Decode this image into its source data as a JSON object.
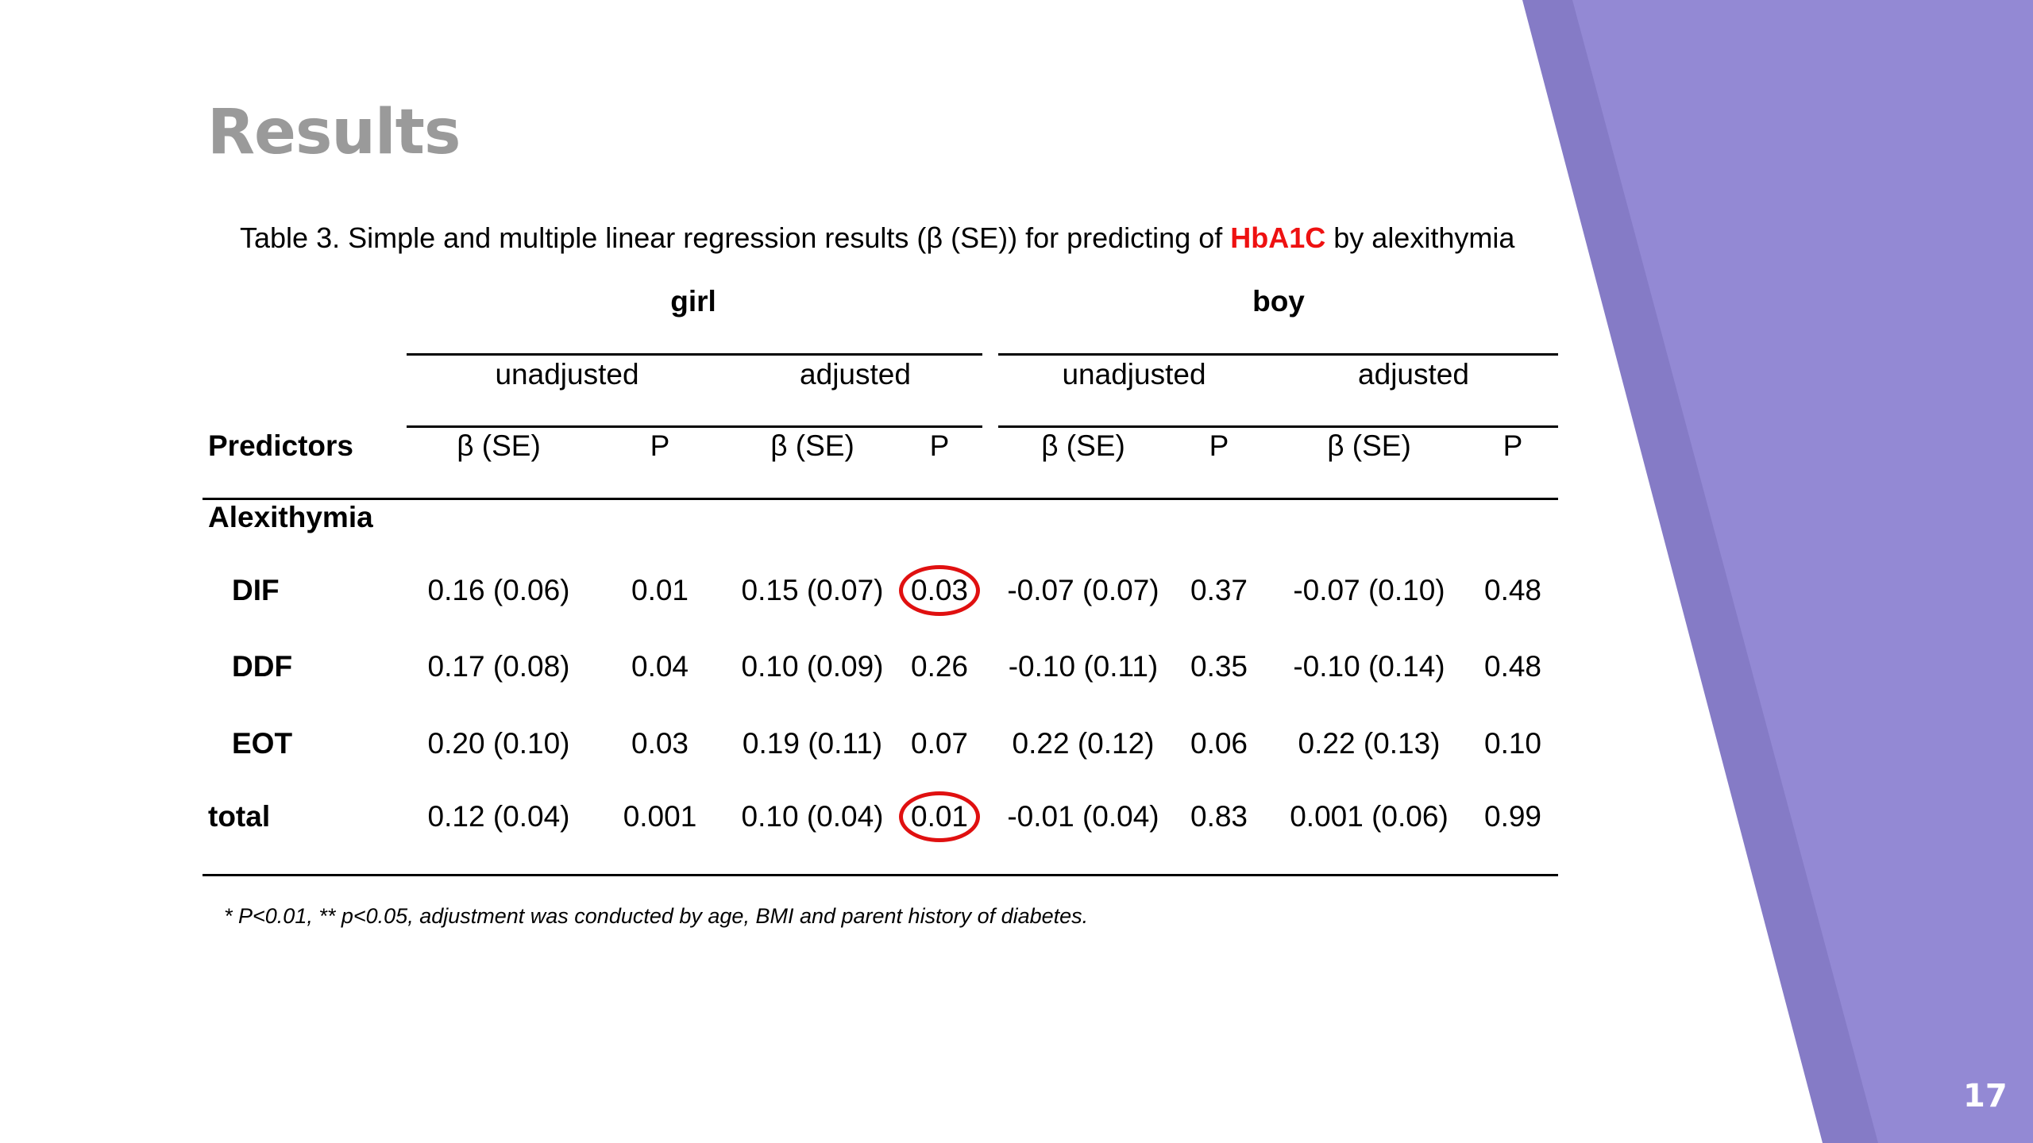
{
  "slide": {
    "title": "Results",
    "page_number": "17",
    "accent_color": "#9389d4",
    "accent_dark": "#857bc6"
  },
  "table": {
    "caption_pre": "Table 3. Simple and multiple linear regression results (β (SE)) for predicting of ",
    "caption_highlight": "HbA1C",
    "caption_post": " by alexithymia",
    "groups": [
      "girl",
      "boy"
    ],
    "subgroups": [
      "unadjusted",
      "adjusted",
      "unadjusted",
      "adjusted"
    ],
    "predictors_label": "Predictors",
    "column_headers": [
      "β (SE)",
      "P",
      "β (SE)",
      "P",
      "β (SE)",
      "P",
      "β (SE)",
      "P"
    ],
    "section_label": "Alexithymia",
    "rows": [
      {
        "label": "DIF",
        "cells": [
          "0.16 (0.06)",
          "0.01",
          "0.15 (0.07)",
          "0.03",
          "-0.07 (0.07)",
          "0.37",
          "-0.07 (0.10)",
          "0.48"
        ]
      },
      {
        "label": "DDF",
        "cells": [
          "0.17 (0.08)",
          "0.04",
          "0.10 (0.09)",
          "0.26",
          "-0.10 (0.11)",
          "0.35",
          "-0.10 (0.14)",
          "0.48"
        ]
      },
      {
        "label": "EOT",
        "cells": [
          "0.20 (0.10)",
          "0.03",
          "0.19 (0.11)",
          "0.07",
          "0.22 (0.12)",
          "0.06",
          "0.22 (0.13)",
          "0.10"
        ]
      },
      {
        "label": "total",
        "cells": [
          "0.12 (0.04)",
          "0.001",
          "0.10 (0.04)",
          "0.01",
          "-0.01 (0.04)",
          "0.83",
          "0.001 (0.06)",
          "0.99"
        ]
      }
    ],
    "highlight_color": "#e01010",
    "footnote": "* P<0.01,   ** p<0.05,   adjustment was conducted by age, BMI and parent history of diabetes."
  }
}
